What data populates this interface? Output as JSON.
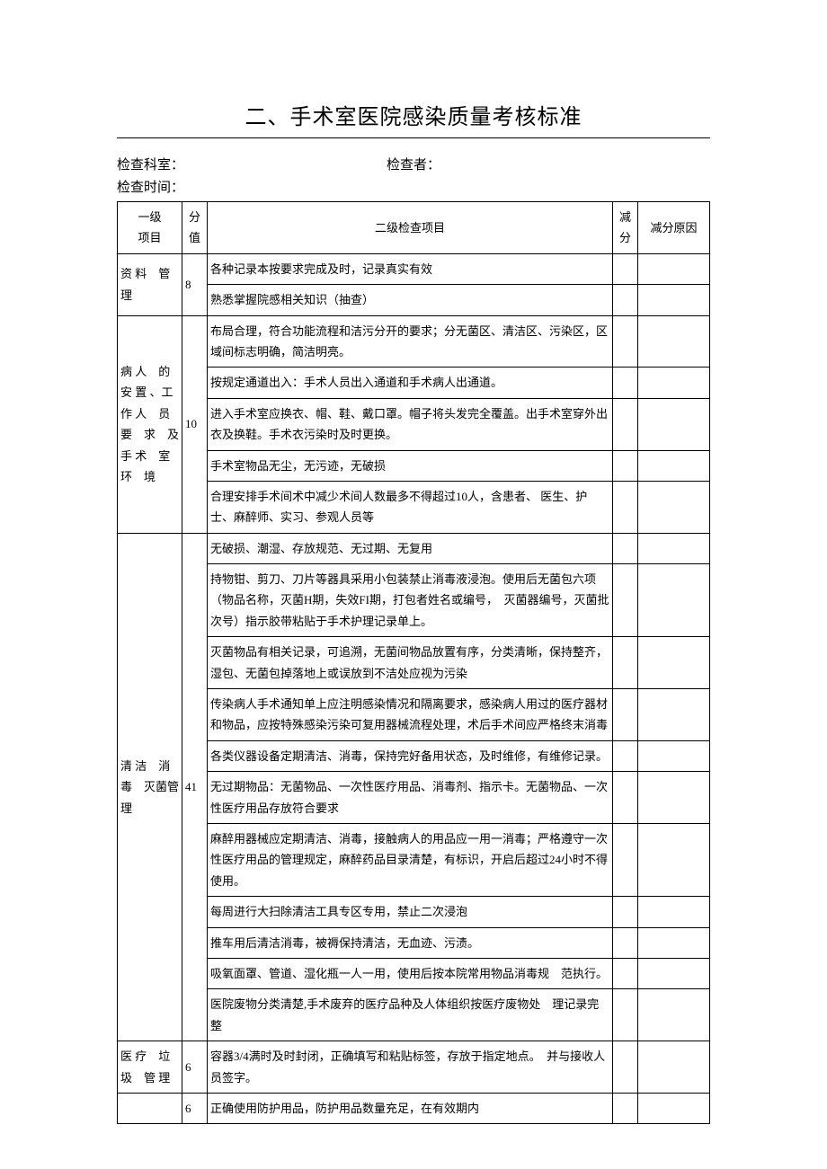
{
  "title": "二、手术室医院感染质量考核标准",
  "meta": {
    "dept_label": "检查科室：",
    "checker_label": "检查者：",
    "time_label": "检查时间："
  },
  "headers": {
    "l1": "一级\n项目",
    "score": "分\n值",
    "l2": "二级检查项目",
    "deduct": "减\n分",
    "reason": "减分原因"
  },
  "sections": [
    {
      "l1": "资 料　管理",
      "score": "8",
      "items": [
        "各种记录本按要求完成及时，记录真实有效",
        "熟悉掌握院感相关知识（抽查）"
      ]
    },
    {
      "l1": "病 人　的安 置 、工作 人　员要　求　及手 术　室环　境",
      "score": "10",
      "items": [
        "布局合理，符合功能流程和洁污分开的要求；分无菌区、清洁区、污染区，区域间标志明确，简洁明亮。",
        "按规定通道出入：手术人员出入通道和手术病人出通道。",
        "进入手术室应换衣、帽、鞋、戴口罩。帽子将头发完全覆盖。出手术室穿外出衣及换鞋。手术衣污染时及时更换。",
        "手术室物品无尘，无污迹，无破损",
        "合理安排手术间术中减少术间人数最多不得超过10人，含患者、 医生、护士、麻醉师、实习、参观人员等"
      ]
    },
    {
      "l1": "清 洁　消毒　灭菌管理",
      "score": "41",
      "items": [
        "无破损、潮湿、存放规范、无过期、无复用",
        "持物钳、剪刀、刀片等器具采用小包装禁止消毒液浸泡。使用后无菌包六项（物品名称，灭菌H期，失效FI期，打包者姓名或编号，　灭菌器编号，灭菌批次号）指示胶带粘贴于手术护理记录单上。",
        "灭菌物品有相关记录，可追溯，无菌间物品放置有序，分类清晰，保持整齐，湿包、无菌包掉落地上或误放到不洁处应视为污染",
        "传染病人手术通知单上应注明感染情况和隔离要求，感染病人用过的医疗器材和物品，应按特殊感染污染可复用器械流程处理，术后手术间应严格终末消毒",
        "各类仪器设备定期清洁、消毒，保持完好备用状态，及时维修，有维修记录。",
        "无过期物品：无菌物品、一次性医疗用品、消毒剂、指示卡。无菌物品、一次性医疗用品存放符合要求",
        "麻醉用器械应定期清洁、消毒，接触病人的用品应一用一消毒；严格遵守一次性医疗用品的管理规定，麻醉药品目录清楚，有标识，开启后超过24小时不得使用。",
        "每周进行大扫除清洁工具专区专用，禁止二次浸泡",
        "推车用后清洁消毒，被褥保持清洁，无血迹、污渍。",
        "吸氧面罩、管道、湿化瓶一人一用，使用后按本院常用物品消毒规　范执行。",
        "医院废物分类清楚,手术废弃的医疗品种及人体组织按医疗废物处　理记录完整"
      ]
    },
    {
      "l1": "医 疗　垃圾　管 理",
      "score": "6",
      "items": [
        "容器3/4满时及时封闭，正确填写和粘贴标签，存放于指定地点。　并与接收人员签字。"
      ]
    },
    {
      "l1": "",
      "score": "6",
      "items": [
        "正确使用防护用品，防护用品数量充足，在有效期内"
      ]
    }
  ]
}
